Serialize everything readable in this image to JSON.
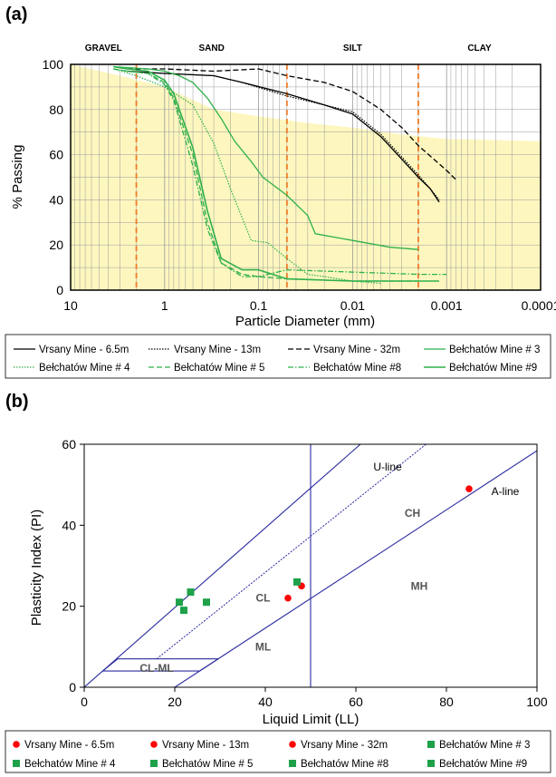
{
  "chart_data": [
    {
      "panel_label": "(a)",
      "type": "line",
      "x_scale": "log",
      "x_reversed": true,
      "xlabel": "Particle Diameter (mm)",
      "ylabel": "% Passing",
      "xlim": [
        10,
        0.0001
      ],
      "ylim": [
        0,
        100
      ],
      "x_ticks": [
        10,
        1,
        0.1,
        0.01,
        0.001,
        0.0001
      ],
      "x_tick_labels": [
        "10",
        "1",
        "0.1",
        "0.01",
        "0.001",
        "0.0001"
      ],
      "y_ticks": [
        0,
        20,
        40,
        60,
        80,
        100
      ],
      "grid": true,
      "size_classes": [
        "GRAVEL",
        "SAND",
        "SILT",
        "CLAY"
      ],
      "class_boundaries_mm": [
        2,
        0.05,
        0.002
      ],
      "shaded_band": [
        [
          10,
          100
        ],
        [
          3,
          95
        ],
        [
          1,
          90
        ],
        [
          0.3,
          80
        ],
        [
          0.1,
          77
        ],
        [
          0.03,
          74
        ],
        [
          0.01,
          72
        ],
        [
          0.003,
          69
        ],
        [
          0.001,
          67
        ],
        [
          0.0001,
          66
        ]
      ],
      "legend_position": "bottom",
      "series": [
        {
          "name": "Vrsany Mine - 6.5m",
          "color": "#000000",
          "dash": "",
          "width": 1.3,
          "points": [
            [
              2.5,
              97
            ],
            [
              1,
              96
            ],
            [
              0.3,
              95
            ],
            [
              0.15,
              92
            ],
            [
              0.05,
              87
            ],
            [
              0.02,
              82
            ],
            [
              0.01,
              78
            ],
            [
              0.005,
              68
            ],
            [
              0.003,
              58
            ],
            [
              0.002,
              50
            ],
            [
              0.0015,
              45
            ],
            [
              0.0012,
              39
            ]
          ]
        },
        {
          "name": "Vrsany Mine - 13m",
          "color": "#000000",
          "dash": "1.5 1.5",
          "width": 1.2,
          "points": [
            [
              2.5,
              97
            ],
            [
              1,
              96
            ],
            [
              0.3,
              95
            ],
            [
              0.15,
              92
            ],
            [
              0.05,
              86
            ],
            [
              0.02,
              82
            ],
            [
              0.01,
              79
            ],
            [
              0.005,
              69
            ],
            [
              0.003,
              59
            ],
            [
              0.002,
              51
            ],
            [
              0.0015,
              45
            ],
            [
              0.0012,
              40
            ]
          ]
        },
        {
          "name": "Vrsany Mine - 32m",
          "color": "#000000",
          "dash": "6 3",
          "width": 1.3,
          "points": [
            [
              2.5,
              98
            ],
            [
              1,
              98
            ],
            [
              0.3,
              97
            ],
            [
              0.1,
              98
            ],
            [
              0.05,
              95
            ],
            [
              0.02,
              92
            ],
            [
              0.01,
              88
            ],
            [
              0.005,
              80
            ],
            [
              0.003,
              72
            ],
            [
              0.002,
              64
            ],
            [
              0.001,
              53
            ],
            [
              0.0008,
              49
            ]
          ]
        },
        {
          "name": "Bełchatów Mine # 3",
          "color": "#2eb04a",
          "dash": "",
          "width": 1.3,
          "points": [
            [
              3.5,
              99
            ],
            [
              1.5,
              98
            ],
            [
              1,
              97
            ],
            [
              0.7,
              95
            ],
            [
              0.5,
              92
            ],
            [
              0.35,
              85
            ],
            [
              0.25,
              76
            ],
            [
              0.18,
              66
            ],
            [
              0.12,
              57
            ],
            [
              0.09,
              50
            ],
            [
              0.05,
              42
            ],
            [
              0.03,
              33
            ],
            [
              0.025,
              25
            ],
            [
              0.01,
              22
            ],
            [
              0.004,
              19
            ],
            [
              0.002,
              18
            ]
          ]
        },
        {
          "name": "Bełchatów Mine # 4",
          "color": "#2eb04a",
          "dash": "1.5 1.5",
          "width": 1.2,
          "points": [
            [
              3.5,
              98
            ],
            [
              2,
              95
            ],
            [
              1,
              90
            ],
            [
              0.5,
              82
            ],
            [
              0.3,
              65
            ],
            [
              0.2,
              45
            ],
            [
              0.12,
              22
            ],
            [
              0.08,
              21
            ],
            [
              0.05,
              14
            ],
            [
              0.03,
              7
            ],
            [
              0.02,
              6
            ],
            [
              0.01,
              4
            ],
            [
              0.005,
              3
            ]
          ]
        },
        {
          "name": "Bełchatów Mine # 5",
          "color": "#2eb04a",
          "dash": "6 3",
          "width": 1.3,
          "points": [
            [
              3.5,
              98
            ],
            [
              2.5,
              97
            ],
            [
              1.5,
              96
            ],
            [
              1,
              92
            ],
            [
              0.8,
              85
            ],
            [
              0.5,
              60
            ],
            [
              0.35,
              30
            ],
            [
              0.25,
              12
            ],
            [
              0.15,
              7
            ],
            [
              0.1,
              6
            ],
            [
              0.05,
              5
            ],
            [
              0.01,
              4
            ],
            [
              0.002,
              4
            ]
          ]
        },
        {
          "name": "Bełchatów Mine #8",
          "color": "#2eb04a",
          "dash": "6 2 1.5 2",
          "width": 1.3,
          "points": [
            [
              3.5,
              98
            ],
            [
              2.5,
              97
            ],
            [
              1.5,
              96
            ],
            [
              1,
              91
            ],
            [
              0.8,
              84
            ],
            [
              0.5,
              55
            ],
            [
              0.35,
              27
            ],
            [
              0.25,
              12
            ],
            [
              0.15,
              6
            ],
            [
              0.1,
              6
            ],
            [
              0.05,
              9
            ],
            [
              0.01,
              8
            ],
            [
              0.002,
              7
            ],
            [
              0.001,
              7
            ]
          ]
        },
        {
          "name": "Bełchatów Mine #9",
          "color": "#2eb04a",
          "dash": "",
          "width": 1.6,
          "points": [
            [
              3.5,
              99
            ],
            [
              2.5,
              98
            ],
            [
              1.5,
              97
            ],
            [
              1,
              93
            ],
            [
              0.8,
              87
            ],
            [
              0.5,
              63
            ],
            [
              0.35,
              35
            ],
            [
              0.25,
              14
            ],
            [
              0.15,
              9
            ],
            [
              0.1,
              9
            ],
            [
              0.05,
              5
            ],
            [
              0.01,
              4
            ],
            [
              0.002,
              4
            ],
            [
              0.0012,
              4
            ]
          ]
        }
      ],
      "legend_rows": [
        [
          "Vrsany Mine - 6.5m",
          "Vrsany Mine - 13m",
          "Vrsany Mine - 32m",
          "Bełchatów Mine # 3"
        ],
        [
          "Bełchatów Mine # 4",
          "Bełchatów Mine # 5",
          "Bełchatów Mine #8",
          "Bełchatów Mine #9"
        ]
      ]
    },
    {
      "panel_label": "(b)",
      "type": "scatter",
      "xlabel": "Liquid Limit (LL)",
      "ylabel": "Plasticity Index (PI)",
      "xlim": [
        0,
        100
      ],
      "ylim": [
        0,
        60
      ],
      "x_ticks": [
        0,
        20,
        40,
        60,
        80,
        100
      ],
      "y_ticks": [
        0,
        20,
        40,
        60
      ],
      "grid": false,
      "chart_lines": {
        "a_line": {
          "label": "A-line",
          "points": [
            [
              20,
              0
            ],
            [
              100,
              58.4
            ]
          ]
        },
        "u_line": {
          "label": "U-line",
          "points": [
            [
              16,
              7
            ],
            [
              75.5,
              60
            ]
          ]
        },
        "upper_boundary": {
          "points": [
            [
              0,
              0
            ],
            [
              61,
              60
            ]
          ]
        },
        "ll_50": {
          "points": [
            [
              50,
              0
            ],
            [
              50,
              60
            ]
          ]
        },
        "cl_ml_band": {
          "points": [
            [
              7.4,
              7
            ],
            [
              29.6,
              7
            ],
            [
              25.5,
              4
            ],
            [
              4.1,
              4
            ],
            [
              7.4,
              7
            ]
          ]
        },
        "line_color": "#2a2aa0"
      },
      "region_labels": [
        {
          "text": "CL-ML",
          "x": 16,
          "y": 4.7
        },
        {
          "text": "CL",
          "x": 39.5,
          "y": 22
        },
        {
          "text": "ML",
          "x": 39.5,
          "y": 10
        },
        {
          "text": "CH",
          "x": 72.5,
          "y": 43
        },
        {
          "text": "MH",
          "x": 74,
          "y": 25
        }
      ],
      "series": [
        {
          "name": "Vrsany Mine - 6.5m",
          "marker": "circle",
          "color": "#ff0000",
          "points": [
            [
              45,
              22
            ]
          ]
        },
        {
          "name": "Vrsany Mine - 13m",
          "marker": "circle",
          "color": "#ff0000",
          "points": [
            [
              48,
              25
            ]
          ]
        },
        {
          "name": "Vrsany Mine - 32m",
          "marker": "circle",
          "color": "#ff0000",
          "points": [
            [
              85,
              49
            ]
          ]
        },
        {
          "name": "Bełchatów Mine # 3",
          "marker": "square",
          "color": "#1fa14a",
          "points": [
            [
              21,
              21
            ]
          ]
        },
        {
          "name": "Bełchatów Mine # 4",
          "marker": "square",
          "color": "#1fa14a",
          "points": [
            [
              22,
              19
            ]
          ]
        },
        {
          "name": "Bełchatów Mine # 5",
          "marker": "square",
          "color": "#1fa14a",
          "points": [
            [
              23.5,
              23.5
            ]
          ]
        },
        {
          "name": "Bełchatów Mine #8",
          "marker": "square",
          "color": "#1fa14a",
          "points": [
            [
              27,
              21
            ]
          ]
        },
        {
          "name": "Bełchatów Mine #9",
          "marker": "square",
          "color": "#1fa14a",
          "points": [
            [
              47,
              26
            ]
          ]
        }
      ],
      "legend_position": "bottom",
      "legend_rows": [
        [
          "Vrsany Mine - 6.5m",
          "Vrsany Mine - 13m",
          "Vrsany Mine - 32m",
          "Bełchatów Mine # 3"
        ],
        [
          "Bełchatów Mine # 4",
          "Bełchatów Mine # 5",
          "Bełchatów Mine #8",
          "Bełchatów Mine #9"
        ]
      ]
    }
  ]
}
